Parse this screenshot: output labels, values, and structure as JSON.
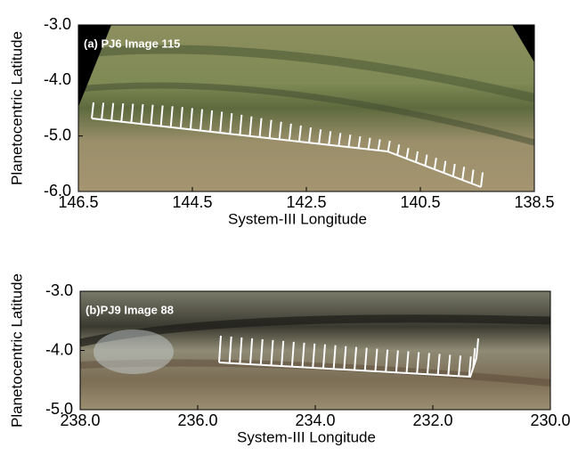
{
  "chart_data": [
    {
      "type": "image",
      "title": "(a) PJ6 Image 115",
      "xlabel": "System-III Longitude",
      "ylabel": "Planetocentric Latitude",
      "xlim": [
        146.5,
        138.5
      ],
      "ylim": [
        -6,
        -3
      ],
      "xticks": [
        146.5,
        144.5,
        142.5,
        140.5,
        138.5
      ],
      "yticks": [
        {
          "value": -3,
          "label": "-3.0"
        },
        {
          "value": -4,
          "label": "-4.0"
        },
        {
          "value": -5,
          "label": "-5.0"
        },
        {
          "value": -6,
          "label": "-6.0"
        }
      ]
    },
    {
      "type": "image",
      "title": "(b)PJ9 Image 88",
      "xlabel": "System-III Longitude",
      "ylabel": "Planetocentric Latitude",
      "xlim": [
        238,
        230
      ],
      "ylim": [
        -5,
        -3
      ],
      "xticks": [
        {
          "value": 238,
          "label": "238.0"
        },
        {
          "value": 236,
          "label": "236.0"
        },
        {
          "value": 234,
          "label": "234.0"
        },
        {
          "value": 232,
          "label": "232.0"
        },
        {
          "value": 230,
          "label": "230.0"
        }
      ],
      "yticks": [
        {
          "value": -3,
          "label": "-3.0"
        },
        {
          "value": -4,
          "label": "-4.0"
        },
        {
          "value": -5,
          "label": "-5.0"
        }
      ]
    }
  ]
}
